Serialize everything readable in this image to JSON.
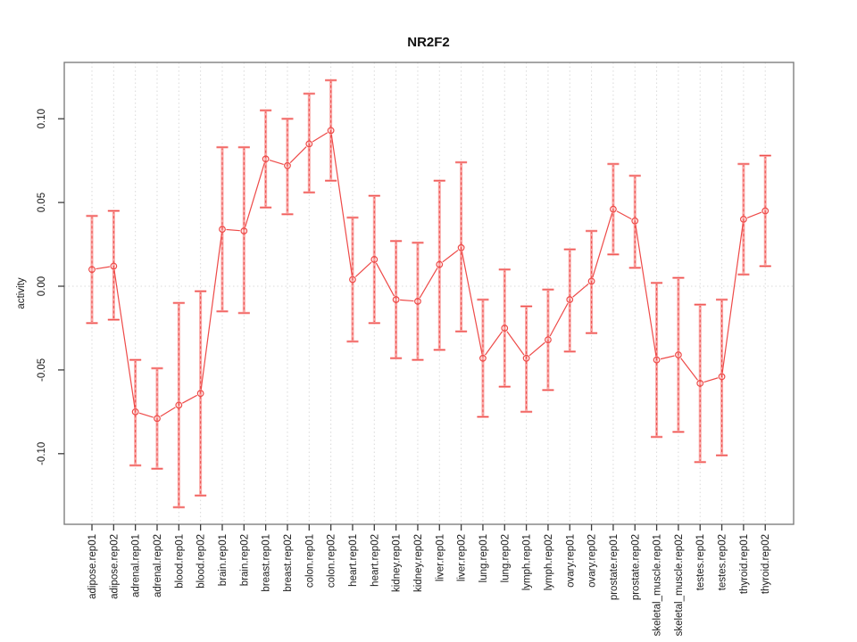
{
  "window": {
    "background": "#ffffff"
  },
  "colors": {
    "series_red": "#ee4a48",
    "band_pink": "#f9a8a6",
    "grid": "#d9d9d9",
    "box": "#7f7f7f",
    "tick": "#3d3d3d",
    "text": "#1a1a1a"
  },
  "chart_data": {
    "type": "line",
    "title": "NR2F2",
    "xlabel": "",
    "ylabel": "activity",
    "ylim": [
      -0.142,
      0.134
    ],
    "ytick_labels": [
      "0.10",
      "0.05",
      "0.00",
      "-0.05",
      "-0.10"
    ],
    "ytick_values": [
      0.1,
      0.05,
      0.0,
      -0.05,
      -0.1
    ],
    "grid": "vertical dotted gridline at every category; dotted horizontal line at y=0",
    "legend": "none",
    "point_style": "open red circles connected by red line, with error bars (light pink band + red dashed whisker with caps)",
    "categories": [
      "adipose.rep01",
      "adipose.rep02",
      "adrenal.rep01",
      "adrenal.rep02",
      "blood.rep01",
      "blood.rep02",
      "brain.rep01",
      "brain.rep02",
      "breast.rep01",
      "breast.rep02",
      "colon.rep01",
      "colon.rep02",
      "heart.rep01",
      "heart.rep02",
      "kidney.rep01",
      "kidney.rep02",
      "liver.rep01",
      "liver.rep02",
      "lung.rep01",
      "lung.rep02",
      "lymph.rep01",
      "lymph.rep02",
      "ovary.rep01",
      "ovary.rep02",
      "prostate.rep01",
      "prostate.rep02",
      "skeletal_muscle.rep01",
      "skeletal_muscle.rep02",
      "testes.rep01",
      "testes.rep02",
      "thyroid.rep01",
      "thyroid.rep02"
    ],
    "series": [
      {
        "name": "activity",
        "values": [
          0.01,
          0.012,
          -0.075,
          -0.079,
          -0.071,
          -0.064,
          0.034,
          0.033,
          0.076,
          0.072,
          0.085,
          0.093,
          0.004,
          0.016,
          -0.008,
          -0.009,
          0.013,
          0.023,
          -0.043,
          -0.025,
          -0.043,
          -0.032,
          -0.008,
          0.003,
          0.046,
          0.039,
          -0.044,
          -0.041,
          -0.058,
          -0.054,
          0.04,
          0.045
        ],
        "lower": [
          -0.022,
          -0.02,
          -0.107,
          -0.109,
          -0.132,
          -0.125,
          -0.015,
          -0.016,
          0.047,
          0.043,
          0.056,
          0.063,
          -0.033,
          -0.022,
          -0.043,
          -0.044,
          -0.038,
          -0.027,
          -0.078,
          -0.06,
          -0.075,
          -0.062,
          -0.039,
          -0.028,
          0.019,
          0.011,
          -0.09,
          -0.087,
          -0.105,
          -0.101,
          0.007,
          0.012
        ],
        "upper": [
          0.042,
          0.045,
          -0.044,
          -0.049,
          -0.01,
          -0.003,
          0.083,
          0.083,
          0.105,
          0.1,
          0.115,
          0.123,
          0.041,
          0.054,
          0.027,
          0.026,
          0.063,
          0.074,
          -0.008,
          0.01,
          -0.012,
          -0.002,
          0.022,
          0.033,
          0.073,
          0.066,
          0.002,
          0.005,
          -0.011,
          -0.008,
          0.073,
          0.078
        ]
      }
    ]
  }
}
